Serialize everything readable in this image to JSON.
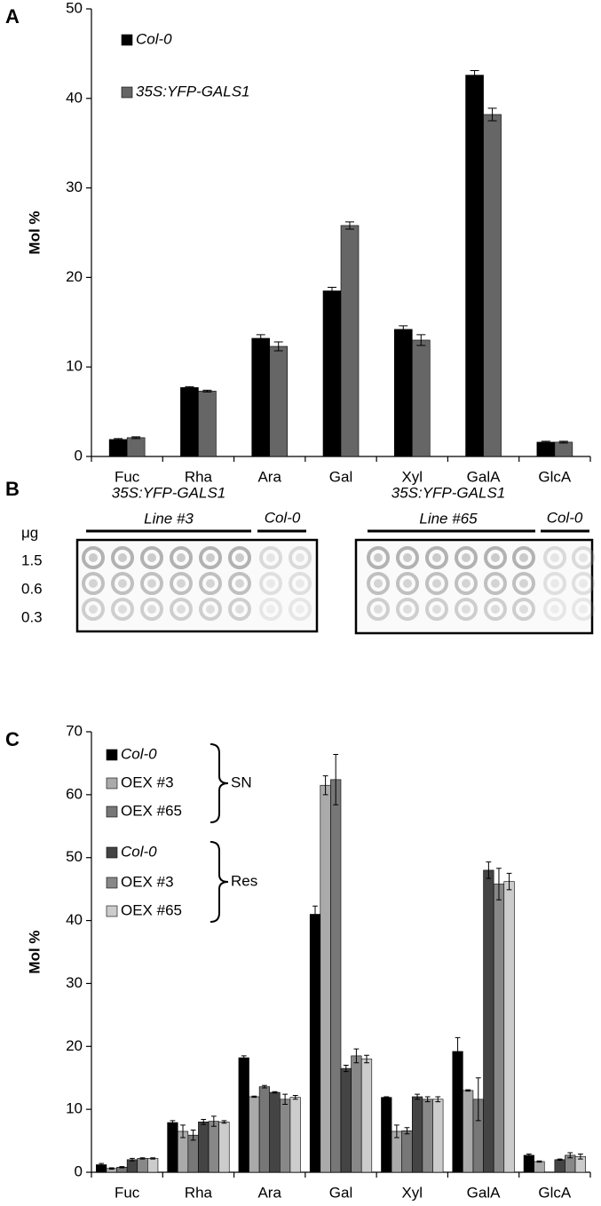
{
  "chart_data": [
    {
      "type": "bar",
      "label": "A",
      "ylabel": "Mol %",
      "categories": [
        "Fuc",
        "Rha",
        "Ara",
        "Gal",
        "Xyl",
        "GalA",
        "GlcA"
      ],
      "ylim": [
        0,
        50
      ],
      "yticks": [
        0,
        10,
        20,
        30,
        40,
        50
      ],
      "series": [
        {
          "name": "Col-0",
          "color": "#000000",
          "italic": true,
          "values": [
            1.9,
            7.7,
            13.2,
            18.5,
            14.2,
            42.6,
            1.6
          ],
          "errors": [
            0.1,
            0.1,
            0.4,
            0.4,
            0.4,
            0.5,
            0.1
          ]
        },
        {
          "name": "35S:YFP-GALS1",
          "color": "#666666",
          "italic": true,
          "values": [
            2.1,
            7.3,
            12.3,
            25.8,
            13.0,
            38.2,
            1.6
          ],
          "errors": [
            0.1,
            0.1,
            0.5,
            0.4,
            0.6,
            0.7,
            0.1
          ]
        }
      ]
    },
    {
      "type": "bar",
      "label": "C",
      "ylabel": "Mol %",
      "categories": [
        "Fuc",
        "Rha",
        "Ara",
        "Gal",
        "Xyl",
        "GalA",
        "GlcA"
      ],
      "ylim": [
        0,
        70
      ],
      "yticks": [
        0,
        10,
        20,
        30,
        40,
        50,
        60,
        70
      ],
      "legend_groups": [
        "SN",
        "Res"
      ],
      "series": [
        {
          "name": "Col-0",
          "color": "#000000",
          "italic": true,
          "values": [
            1.2,
            7.9,
            18.2,
            41,
            11.9,
            19.2,
            2.7
          ],
          "errors": [
            0.2,
            0.3,
            0.3,
            1.3,
            0.1,
            2.2,
            0.2
          ]
        },
        {
          "name": "OEX #3",
          "color": "#aaaaaa",
          "italic": false,
          "values": [
            0.6,
            6.5,
            12,
            61.5,
            6.5,
            13,
            1.7
          ],
          "errors": [
            0.1,
            1.0,
            0.1,
            1.5,
            1.0,
            0.1,
            0.1
          ]
        },
        {
          "name": "OEX #65",
          "color": "#777777",
          "italic": false,
          "values": [
            0.8,
            5.9,
            13.6,
            62.4,
            6.6,
            11.6,
            0
          ],
          "errors": [
            0.1,
            0.8,
            0.2,
            4.0,
            0.5,
            3.4,
            0
          ]
        },
        {
          "name": "Col-0",
          "color": "#444444",
          "italic": true,
          "values": [
            2.0,
            8.0,
            12.7,
            16.5,
            12.0,
            48,
            2.0
          ],
          "errors": [
            0.2,
            0.4,
            0.1,
            0.5,
            0.4,
            1.3,
            0.1
          ]
        },
        {
          "name": "OEX #3",
          "color": "#888888",
          "italic": false,
          "values": [
            2.2,
            8.1,
            11.6,
            18.5,
            11.6,
            45.8,
            2.7
          ],
          "errors": [
            0.1,
            0.8,
            0.8,
            1.1,
            0.4,
            2.5,
            0.4
          ]
        },
        {
          "name": "OEX #65",
          "color": "#cccccc",
          "italic": false,
          "values": [
            2.2,
            8.0,
            11.9,
            18,
            11.6,
            46.2,
            2.5
          ],
          "errors": [
            0.1,
            0.2,
            0.3,
            0.6,
            0.4,
            1.3,
            0.4
          ]
        }
      ]
    }
  ],
  "blot": {
    "label": "B",
    "unit": "μg",
    "rows": [
      "1.5",
      "0.6",
      "0.3"
    ],
    "panels": [
      {
        "title": "35S:YFP-GALS1",
        "line": "Line #3",
        "control": "Col-0"
      },
      {
        "title": "35S:YFP-GALS1",
        "line": "Line #65",
        "control": "Col-0"
      }
    ]
  }
}
